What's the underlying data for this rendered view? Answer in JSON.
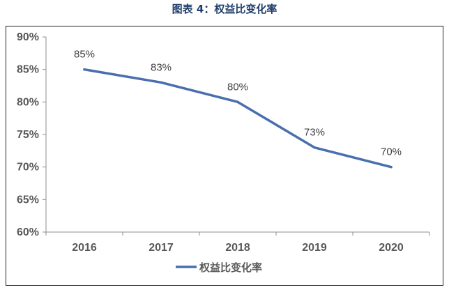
{
  "figure": {
    "caption": "图表 4：权益比变化率"
  },
  "chart_data": {
    "type": "line",
    "title": "",
    "xlabel": "",
    "ylabel": "",
    "categories": [
      "2016",
      "2017",
      "2018",
      "2019",
      "2020"
    ],
    "ylim": [
      60,
      90
    ],
    "yticks": [
      60,
      65,
      70,
      75,
      80,
      85,
      90
    ],
    "ytick_labels": [
      "60%",
      "65%",
      "70%",
      "75%",
      "80%",
      "85%",
      "90%"
    ],
    "grid": false,
    "legend_position": "bottom",
    "series": [
      {
        "name": "权益比变化率",
        "values": [
          85,
          83,
          80,
          73,
          70
        ],
        "labels": [
          "85%",
          "83%",
          "80%",
          "73%",
          "70%"
        ],
        "color": "#4a6fae"
      }
    ]
  }
}
